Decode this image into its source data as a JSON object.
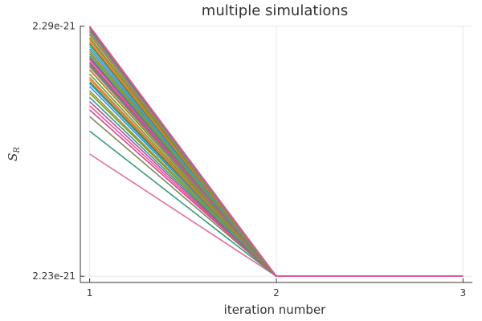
{
  "chart_data": {
    "type": "line",
    "title": "multiple simulations",
    "xlabel": "iteration number",
    "ylabel": {
      "main": "S",
      "subscript": "R"
    },
    "x": [
      1,
      2,
      3
    ],
    "xlim": [
      0.95,
      3.05
    ],
    "ylim": [
      2.2285e-21,
      2.2901e-21
    ],
    "x_ticks": [
      1,
      2,
      3
    ],
    "x_tick_labels": [
      "1",
      "2",
      "3"
    ],
    "y_ticks": [
      2.23e-21,
      2.29e-21
    ],
    "y_tick_labels": [
      "2.23e-21",
      "2.29e-21"
    ],
    "grid": true,
    "legend": "none",
    "colors": {
      "axis": "#333333",
      "grid": "#e8e8e8",
      "palette": [
        "#e26f9c",
        "#3a9a78",
        "#7a8a5a",
        "#d2458e",
        "#e3579b",
        "#c5468c",
        "#2b9aa0",
        "#7c9a2a",
        "#9a9a1a",
        "#3b8fd6",
        "#4aa3d8",
        "#2f8c4e",
        "#d6822f",
        "#e07b3a",
        "#6a9a2e",
        "#8a8a10"
      ]
    },
    "series": [
      {
        "values": [
          2.2593e-21,
          2.23e-21,
          2.23e-21
        ]
      },
      {
        "values": [
          2.2648e-21,
          2.23e-21,
          2.23e-21
        ]
      },
      {
        "values": [
          2.2683e-21,
          2.23e-21,
          2.23e-21
        ]
      },
      {
        "values": [
          2.2699e-21,
          2.23e-21,
          2.23e-21
        ]
      },
      {
        "values": [
          2.2709e-21,
          2.23e-21,
          2.23e-21
        ]
      },
      {
        "values": [
          2.2719e-21,
          2.23e-21,
          2.23e-21
        ]
      },
      {
        "values": [
          2.2729e-21,
          2.23e-21,
          2.23e-21
        ]
      },
      {
        "values": [
          2.2739e-21,
          2.23e-21,
          2.23e-21
        ]
      },
      {
        "values": [
          2.2745e-21,
          2.23e-21,
          2.23e-21
        ]
      },
      {
        "values": [
          2.2755e-21,
          2.23e-21,
          2.23e-21
        ]
      },
      {
        "values": [
          2.2762e-21,
          2.23e-21,
          2.23e-21
        ]
      },
      {
        "values": [
          2.2766e-21,
          2.23e-21,
          2.23e-21
        ]
      },
      {
        "values": [
          2.2772e-21,
          2.23e-21,
          2.23e-21
        ]
      },
      {
        "values": [
          2.2777e-21,
          2.23e-21,
          2.23e-21
        ]
      },
      {
        "values": [
          2.2785e-21,
          2.23e-21,
          2.23e-21
        ]
      },
      {
        "values": [
          2.2795e-21,
          2.23e-21,
          2.23e-21
        ]
      },
      {
        "values": [
          2.2802e-21,
          2.23e-21,
          2.23e-21
        ]
      },
      {
        "values": [
          2.2806e-21,
          2.23e-21,
          2.23e-21
        ]
      },
      {
        "values": [
          2.281e-21,
          2.23e-21,
          2.23e-21
        ]
      },
      {
        "values": [
          2.2814e-21,
          2.23e-21,
          2.23e-21
        ]
      },
      {
        "values": [
          2.282e-21,
          2.23e-21,
          2.23e-21
        ]
      },
      {
        "values": [
          2.2824e-21,
          2.23e-21,
          2.23e-21
        ]
      },
      {
        "values": [
          2.2828e-21,
          2.23e-21,
          2.23e-21
        ]
      },
      {
        "values": [
          2.2834e-21,
          2.23e-21,
          2.23e-21
        ]
      },
      {
        "values": [
          2.2839e-21,
          2.23e-21,
          2.23e-21
        ]
      },
      {
        "values": [
          2.2845e-21,
          2.23e-21,
          2.23e-21
        ]
      },
      {
        "values": [
          2.2851e-21,
          2.23e-21,
          2.23e-21
        ]
      },
      {
        "values": [
          2.2857e-21,
          2.23e-21,
          2.23e-21
        ]
      },
      {
        "values": [
          2.2862e-21,
          2.23e-21,
          2.23e-21
        ]
      },
      {
        "values": [
          2.2868e-21,
          2.23e-21,
          2.23e-21
        ]
      },
      {
        "values": [
          2.2873e-21,
          2.23e-21,
          2.23e-21
        ]
      },
      {
        "values": [
          2.288e-21,
          2.23e-21,
          2.23e-21
        ]
      },
      {
        "values": [
          2.2885e-21,
          2.23e-21,
          2.23e-21
        ]
      },
      {
        "values": [
          2.289e-21,
          2.23e-21,
          2.23e-21
        ]
      },
      {
        "values": [
          2.2895e-21,
          2.23e-21,
          2.23e-21
        ]
      },
      {
        "values": [
          2.2898e-21,
          2.23e-21,
          2.23e-21
        ]
      },
      {
        "values": [
          2.29e-21,
          2.23e-21,
          2.23e-21
        ]
      }
    ]
  }
}
